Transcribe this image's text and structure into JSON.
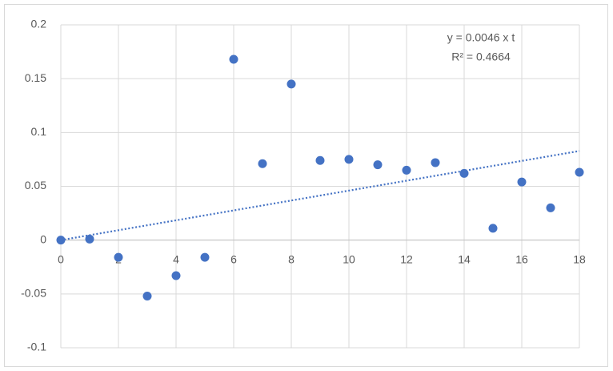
{
  "chart_data": {
    "type": "scatter",
    "x": [
      0,
      1,
      2,
      3,
      4,
      5,
      6,
      7,
      8,
      9,
      10,
      11,
      12,
      13,
      14,
      15,
      16,
      17,
      18
    ],
    "values": [
      0,
      0.001,
      -0.016,
      -0.052,
      -0.033,
      -0.016,
      0.168,
      0.071,
      0.145,
      0.074,
      0.075,
      0.07,
      0.065,
      0.072,
      0.062,
      0.011,
      0.054,
      0.03,
      0.063
    ],
    "color": "#4472c4",
    "xlim": [
      0,
      18
    ],
    "xticks": [
      0,
      2,
      4,
      6,
      8,
      10,
      12,
      14,
      16,
      18
    ],
    "ylim": [
      -0.1,
      0.2
    ],
    "yticks": [
      -0.1,
      -0.05,
      0,
      0.05,
      0.1,
      0.15,
      0.2
    ],
    "grid": true,
    "trendline": {
      "slope": 0.0046,
      "color": "#4472c4"
    },
    "annotations": [
      "y = 0.0046 x t",
      "R² = 0.4664"
    ]
  }
}
